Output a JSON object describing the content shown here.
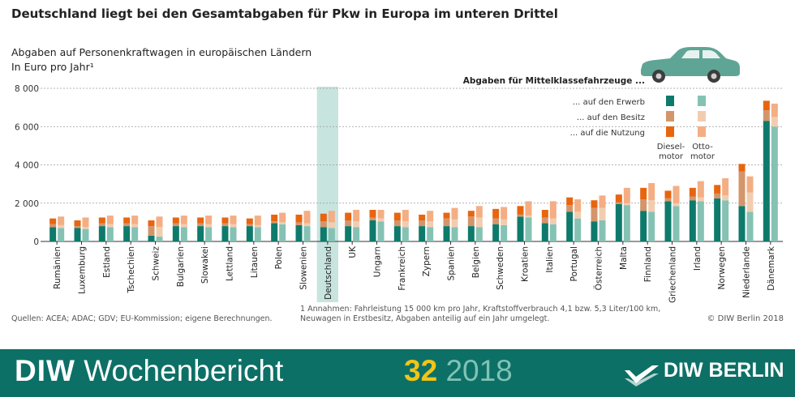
{
  "header": {
    "title": "Deutschland liegt bei den Gesamtabgaben für Pkw in Europa im unteren Drittel",
    "subtitle": "Abgaben auf Personenkraftwagen in europäischen Ländern",
    "unit": "In Euro pro Jahr¹"
  },
  "legend": {
    "heading": "Abgaben für Mittelklassefahrzeuge ...",
    "rows": [
      "... auf den Erwerb",
      "... auf den Besitz",
      "... auf die Nutzung"
    ],
    "diesel_label_1": "Diesel-",
    "diesel_label_2": "motor",
    "otto_label_1": "Otto-",
    "otto_label_2": "motor"
  },
  "footer_notes": {
    "source": "Quellen: ACEA; ADAC; GDV; EU-Kommission; eigene Berechnungen.",
    "footnote_line1": "1 Annahmen: Fahrleistung 15 000 km pro Jahr, Kraftstoffverbrauch 4,1 bzw. 5,3 Liter/100 km,",
    "footnote_line2": "Neuwagen in Erstbesitz, Abgaben anteilig auf ein Jahr umgelegt.",
    "copyright": "© DIW Berlin 2018"
  },
  "branding": {
    "publication": "DIW",
    "publication_rest": " Wochenbericht",
    "issue": "32",
    "year": "2018",
    "org": "DIW BERLIN"
  },
  "colors": {
    "diesel_erwerb": "#0e7a6b",
    "diesel_besitz": "#d4956a",
    "diesel_nutzung": "#e8650f",
    "otto_erwerb": "#85c2b4",
    "otto_besitz": "#f1cdb0",
    "otto_nutzung": "#f4ae84",
    "highlight": "#c8e4df",
    "car": "#5fa595",
    "footer_bg": "#0d7066"
  },
  "chart_data": {
    "type": "bar",
    "stacked": true,
    "grouped": true,
    "ylim": [
      0,
      8000
    ],
    "yticks": [
      "0",
      "2 000",
      "4 000",
      "6 000",
      "8 000"
    ],
    "ytick_values": [
      0,
      2000,
      4000,
      6000,
      8000
    ],
    "highlight_category": "Deutschland",
    "categories": [
      "Rumänien",
      "Luxemburg",
      "Estland",
      "Tschechien",
      "Schweiz",
      "Bulgarien",
      "Slowakei",
      "Lettland",
      "Litauen",
      "Polen",
      "Slowenien",
      "Deutschland",
      "UK",
      "Ungarn",
      "Frankreich",
      "Zypern",
      "Spanien",
      "Belgien",
      "Schweden",
      "Kroatien",
      "Italien",
      "Portugal",
      "Österreich",
      "Malta",
      "Finnland",
      "Griechenland",
      "Irland",
      "Norwegen",
      "Niederlande",
      "Dänemark"
    ],
    "series": [
      {
        "group": "Dieselmotor",
        "component": "Erwerb",
        "values": [
          750,
          700,
          800,
          800,
          300,
          800,
          800,
          800,
          800,
          950,
          850,
          750,
          800,
          1100,
          800,
          800,
          800,
          800,
          900,
          1300,
          950,
          1550,
          1050,
          1950,
          1600,
          2100,
          2150,
          2250,
          1850,
          6300
        ]
      },
      {
        "group": "Dieselmotor",
        "component": "Besitz",
        "values": [
          150,
          100,
          150,
          150,
          500,
          150,
          150,
          150,
          100,
          100,
          150,
          300,
          300,
          150,
          300,
          300,
          400,
          500,
          300,
          100,
          300,
          350,
          700,
          100,
          600,
          150,
          200,
          250,
          1800,
          550
        ]
      },
      {
        "group": "Dieselmotor",
        "component": "Nutzung",
        "values": [
          300,
          300,
          300,
          300,
          300,
          300,
          300,
          300,
          300,
          350,
          400,
          400,
          400,
          400,
          400,
          300,
          300,
          300,
          500,
          450,
          400,
          400,
          400,
          400,
          600,
          400,
          450,
          450,
          400,
          500
        ]
      },
      {
        "group": "Ottomotor",
        "component": "Erwerb",
        "values": [
          700,
          650,
          750,
          750,
          250,
          750,
          750,
          750,
          750,
          900,
          800,
          700,
          750,
          1050,
          750,
          750,
          750,
          750,
          850,
          1250,
          900,
          1200,
          1100,
          1900,
          1550,
          1850,
          2100,
          2150,
          1550,
          6000
        ]
      },
      {
        "group": "Ottomotor",
        "component": "Besitz",
        "values": [
          150,
          100,
          150,
          150,
          500,
          150,
          150,
          150,
          100,
          100,
          150,
          300,
          300,
          150,
          300,
          300,
          400,
          500,
          300,
          100,
          300,
          350,
          650,
          100,
          600,
          150,
          200,
          250,
          1000,
          500
        ]
      },
      {
        "group": "Ottomotor",
        "component": "Nutzung",
        "values": [
          450,
          500,
          450,
          450,
          550,
          450,
          450,
          450,
          500,
          500,
          650,
          600,
          600,
          450,
          600,
          550,
          600,
          600,
          650,
          750,
          900,
          650,
          650,
          800,
          900,
          900,
          850,
          900,
          850,
          700
        ]
      }
    ]
  }
}
